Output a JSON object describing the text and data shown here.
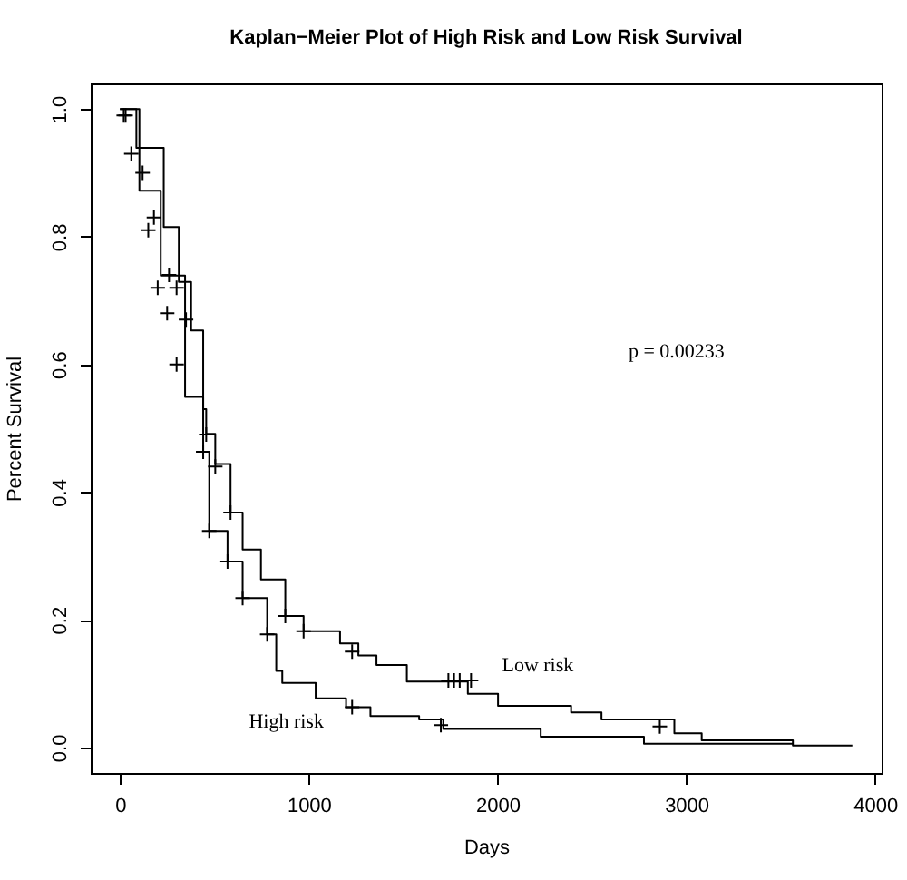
{
  "chart_data": {
    "type": "step",
    "title": "Kaplan−Meier Plot of High Risk and Low Risk Survival",
    "xlabel": "Days",
    "ylabel": "Percent Survival",
    "annotations": [
      "p = 0.00233"
    ],
    "xlim": [
      -155,
      4035
    ],
    "xticks": [
      0,
      1000,
      2000,
      3000,
      4000
    ],
    "ylim": [
      -0.04,
      1.04
    ],
    "yticks": [
      {
        "value": 0,
        "label": "0.0"
      },
      0.2,
      0.4,
      0.6,
      0.8,
      {
        "value": 1,
        "label": "1.0"
      }
    ],
    "grid": false,
    "line_style": "solid",
    "series": [
      {
        "name": "High risk",
        "color": "#000000",
        "x": [
          0,
          103,
          216,
          345,
          441,
          473,
          570,
          650,
          780,
          828,
          860,
          1037,
          1198,
          1327,
          1585,
          1713,
          2229,
          2776,
          3565
        ],
        "values": [
          1,
          0.872,
          0.739,
          0.549,
          0.463,
          0.339,
          0.291,
          0.234,
          0.177,
          0.12,
          0.101,
          0.077,
          0.063,
          0.049,
          0.044,
          0.029,
          0.017,
          0.006,
          0.006
        ]
      },
      {
        "name": "Low risk",
        "color": "#000000",
        "x": [
          0,
          87,
          232,
          312,
          377,
          441,
          457,
          505,
          586,
          650,
          747,
          876,
          973,
          1166,
          1263,
          1359,
          1520,
          1843,
          2003,
          2390,
          2551,
          2937,
          3082,
          3565,
          3880
        ],
        "values": [
          1,
          0.939,
          0.815,
          0.729,
          0.653,
          0.53,
          0.491,
          0.444,
          0.368,
          0.31,
          0.263,
          0.206,
          0.182,
          0.163,
          0.144,
          0.129,
          0.103,
          0.084,
          0.065,
          0.055,
          0.044,
          0.022,
          0.011,
          0.003,
          0.003
        ]
      },
      {
        "type": "scatter",
        "marker": "cross",
        "color": "#000000",
        "x": [
          20,
          60,
          150,
          200,
          250,
          300,
          441,
          473,
          570,
          650,
          780,
          1230,
          1700
        ],
        "values": [
          0.99,
          0.93,
          0.81,
          0.72,
          0.68,
          0.6,
          0.463,
          0.339,
          0.291,
          0.234,
          0.177,
          0.063,
          0.035
        ]
      },
      {
        "type": "scatter",
        "marker": "cross",
        "color": "#000000",
        "x": [
          30,
          120,
          180,
          260,
          300,
          350,
          457,
          505,
          586,
          876,
          973,
          1230,
          1740,
          1770,
          1800,
          1860,
          2860
        ],
        "values": [
          0.99,
          0.9,
          0.83,
          0.74,
          0.72,
          0.67,
          0.49,
          0.44,
          0.368,
          0.206,
          0.182,
          0.15,
          0.105,
          0.105,
          0.105,
          0.105,
          0.033
        ]
      }
    ]
  }
}
